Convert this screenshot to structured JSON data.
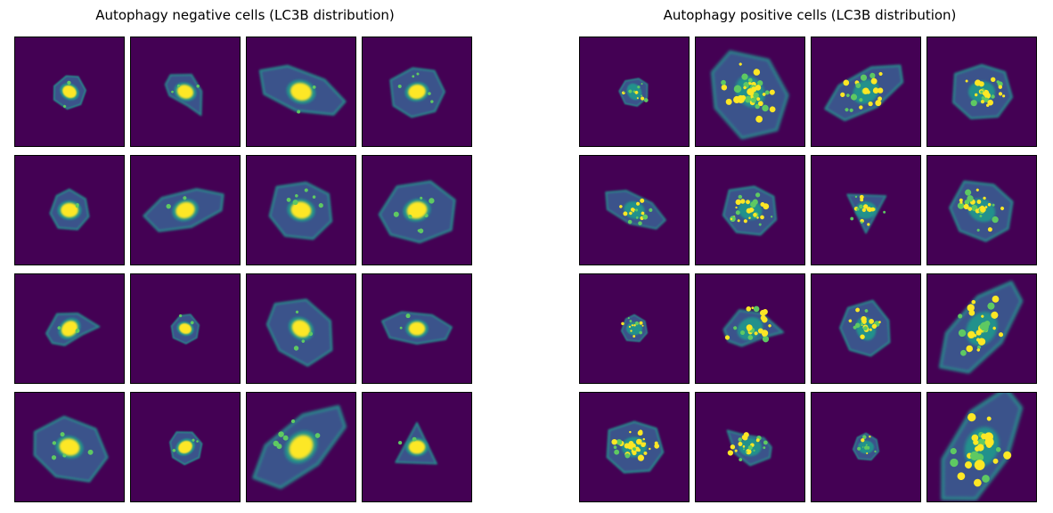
{
  "figure": {
    "panels": [
      {
        "title": "Autophagy negative cells (LC3B distribution)",
        "cells": [
          {
            "shape": "compact",
            "angle": 30,
            "scale": 0.75,
            "puncta": 2,
            "seed": 3
          },
          {
            "shape": "teardrop",
            "angle": 20,
            "scale": 0.85,
            "puncta": 3,
            "seed": 7
          },
          {
            "shape": "elongated",
            "angle": 15,
            "scale": 1.1,
            "puncta": 2,
            "seed": 11
          },
          {
            "shape": "irregular",
            "angle": -10,
            "scale": 0.9,
            "puncta": 5,
            "seed": 13
          },
          {
            "shape": "compact",
            "angle": 0,
            "scale": 0.9,
            "puncta": 2,
            "seed": 17
          },
          {
            "shape": "elongated",
            "angle": -20,
            "scale": 1.0,
            "puncta": 2,
            "seed": 19
          },
          {
            "shape": "irregular",
            "angle": 10,
            "scale": 1.05,
            "puncta": 6,
            "seed": 23
          },
          {
            "shape": "spread",
            "angle": -15,
            "scale": 1.05,
            "puncta": 7,
            "seed": 29
          },
          {
            "shape": "teardrop",
            "angle": -40,
            "scale": 0.9,
            "puncta": 2,
            "seed": 31
          },
          {
            "shape": "compact",
            "angle": 20,
            "scale": 0.65,
            "puncta": 2,
            "seed": 37
          },
          {
            "shape": "spread",
            "angle": 35,
            "scale": 1.0,
            "puncta": 4,
            "seed": 41
          },
          {
            "shape": "elongated",
            "angle": 0,
            "scale": 0.85,
            "puncta": 2,
            "seed": 43
          },
          {
            "shape": "spread",
            "angle": 15,
            "scale": 1.05,
            "puncta": 5,
            "seed": 47
          },
          {
            "shape": "compact",
            "angle": -30,
            "scale": 0.75,
            "puncta": 3,
            "seed": 53
          },
          {
            "shape": "elongated",
            "angle": -45,
            "scale": 1.35,
            "puncta": 6,
            "seed": 59
          },
          {
            "shape": "triangle",
            "angle": 0,
            "scale": 0.85,
            "puncta": 2,
            "seed": 61
          }
        ]
      },
      {
        "title": "Autophagy positive cells (LC3B distribution)",
        "cells": [
          {
            "shape": "compact",
            "angle": 60,
            "scale": 0.65,
            "puncta": 12,
            "seed": 67
          },
          {
            "shape": "spread",
            "angle": 55,
            "scale": 1.25,
            "puncta": 40,
            "seed": 71
          },
          {
            "shape": "elongated",
            "angle": -35,
            "scale": 1.05,
            "puncta": 24,
            "seed": 73
          },
          {
            "shape": "irregular",
            "angle": 0,
            "scale": 1.0,
            "puncta": 22,
            "seed": 79
          },
          {
            "shape": "elongated",
            "angle": 20,
            "scale": 0.8,
            "puncta": 16,
            "seed": 83
          },
          {
            "shape": "irregular",
            "angle": 10,
            "scale": 0.9,
            "puncta": 26,
            "seed": 89
          },
          {
            "shape": "triangle",
            "angle": 180,
            "scale": 0.8,
            "puncta": 18,
            "seed": 97
          },
          {
            "shape": "irregular",
            "angle": 25,
            "scale": 1.05,
            "puncta": 28,
            "seed": 101
          },
          {
            "shape": "compact",
            "angle": 0,
            "scale": 0.6,
            "puncta": 12,
            "seed": 103
          },
          {
            "shape": "teardrop",
            "angle": -30,
            "scale": 1.0,
            "puncta": 24,
            "seed": 107
          },
          {
            "shape": "irregular",
            "angle": 70,
            "scale": 0.9,
            "puncta": 20,
            "seed": 109
          },
          {
            "shape": "elongated",
            "angle": -55,
            "scale": 1.35,
            "puncta": 28,
            "seed": 113
          },
          {
            "shape": "irregular",
            "angle": 0,
            "scale": 0.95,
            "puncta": 34,
            "seed": 127
          },
          {
            "shape": "teardrop",
            "angle": 180,
            "scale": 0.85,
            "puncta": 20,
            "seed": 131
          },
          {
            "shape": "compact",
            "angle": 0,
            "scale": 0.6,
            "puncta": 10,
            "seed": 137
          },
          {
            "shape": "elongated",
            "angle": -65,
            "scale": 1.55,
            "puncta": 28,
            "seed": 139
          }
        ]
      }
    ]
  },
  "colormap": {
    "background": "#440154",
    "dim": "#3b528b",
    "mid": "#21918c",
    "bright": "#5ec962",
    "peak": "#fde725"
  }
}
